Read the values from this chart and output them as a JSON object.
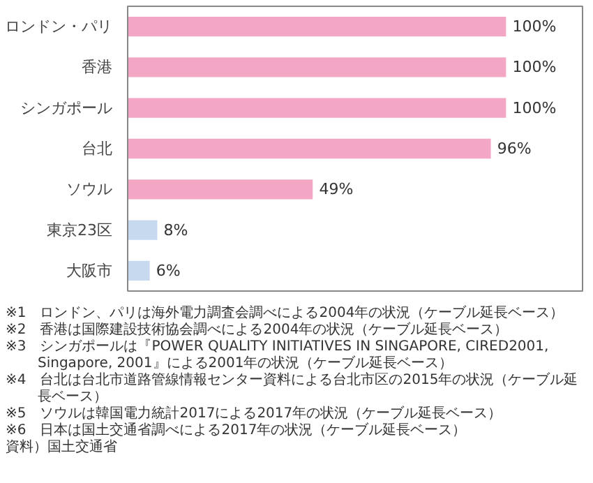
{
  "chart_data": {
    "type": "bar",
    "orientation": "horizontal",
    "categories": [
      "ロンドン・パリ",
      "香港",
      "シンガポール",
      "台北",
      "ソウル",
      "東京23区",
      "大阪市"
    ],
    "values": [
      100,
      100,
      100,
      96,
      49,
      8,
      6
    ],
    "colors": [
      "#f4a7c5",
      "#f4a7c5",
      "#f4a7c5",
      "#f4a7c5",
      "#f4a7c5",
      "#c6d9ef",
      "#c6d9ef"
    ],
    "value_labels": [
      "100%",
      "100%",
      "100%",
      "96%",
      "49%",
      "8%",
      "6%"
    ],
    "grid": false,
    "annotations": [
      "※1　ロンドン、パリは海外電力調査会調べによる2004年の状況（ケーブル延長ベース）",
      "※2　香港は国際建設技術協会調べによる2004年の状況（ケーブル延長ベース）",
      "※3　シンガポールは『POWER QUALITY INITIATIVES IN SINGAPORE, CIRED2001, Singapore, 2001』による2001年の状況（ケーブル延長ベース）",
      "※4　台北は台北市道路管線情報センター資料による台北市区の2015年の状況（ケーブル延長ベース）",
      "※5　ソウルは韓国電力統計2017による2017年の状況（ケーブル延長ベース）",
      "※6　日本は国土交通省調べによる2017年の状況（ケーブル延長ベース）",
      "資料）国土交通省"
    ]
  }
}
